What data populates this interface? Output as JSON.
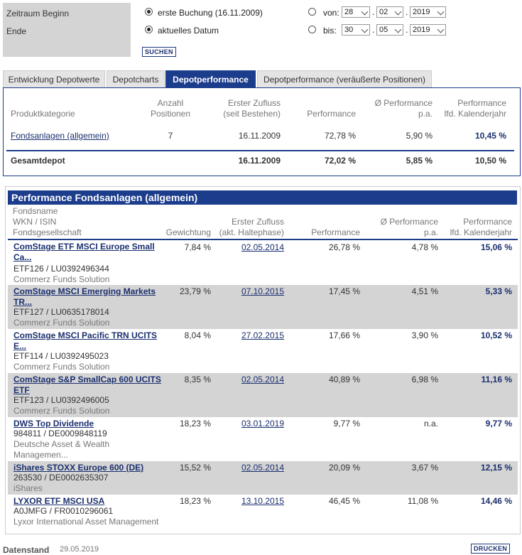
{
  "filter": {
    "zeitraum_label": "Zeitraum Beginn",
    "ende_label": "Ende",
    "option_first": "erste Buchung (16.11.2009)",
    "option_current": "aktuelles Datum",
    "von_label": "von:",
    "bis_label": "bis:",
    "von_day": "28",
    "von_month": "02",
    "von_year": "2019",
    "bis_day": "30",
    "bis_month": "05",
    "bis_year": "2019",
    "dot": ".",
    "search_button": "SUCHEN"
  },
  "tabs": [
    {
      "label": "Entwicklung Depotwerte"
    },
    {
      "label": "Depotcharts"
    },
    {
      "label": "Depotperformance"
    },
    {
      "label": "Depotperformance (veräußerte Positionen)"
    }
  ],
  "summary": {
    "headers": {
      "category": "Produktkategorie",
      "positions_1": "Anzahl",
      "positions_2": "Positionen",
      "first_1": "Erster Zufluss",
      "first_2": "(seit Bestehen)",
      "performance": "Performance",
      "pa_1": "Ø Performance",
      "pa_2": "p.a.",
      "year_1": "Performance",
      "year_2": "lfd. Kalenderjahr"
    },
    "row": {
      "category": "Fondsanlagen (allgemein)",
      "positions": "7",
      "first": "16.11.2009",
      "performance": "72,78 %",
      "pa": "5,90 %",
      "year": "10,45 %"
    },
    "total": {
      "label": "Gesamtdepot",
      "first": "16.11.2009",
      "performance": "72,02 %",
      "pa": "5,85 %",
      "year": "10,50 %"
    }
  },
  "funds": {
    "title": "Performance Fondsanlagen (allgemein)",
    "headers": {
      "name_1": "Fondsname",
      "name_2": "WKN / ISIN",
      "name_3": "Fondsgesellschaft",
      "weight": "Gewichtung",
      "first_1": "Erster Zufluss",
      "first_2": "(akt. Haltephase)",
      "performance": "Performance",
      "pa_1": "Ø Performance",
      "pa_2": "p.a.",
      "year_1": "Performance",
      "year_2": "lfd. Kalenderjahr"
    },
    "rows": [
      {
        "name_1": "ComStage ETF MSCI Europe Small",
        "name_2": "Ca...",
        "wkn": "ETF126 / LU0392496344",
        "gs": "Commerz Funds Solution",
        "weight": "7,84 %",
        "first": "02.05.2014",
        "performance": "26,78 %",
        "pa": "4,78 %",
        "year": "15,06 %"
      },
      {
        "name_1": "ComStage MSCI Emerging Markets",
        "name_2": "TR...",
        "wkn": "ETF127 / LU0635178014",
        "gs": "Commerz Funds Solution",
        "weight": "23,79 %",
        "first": "07.10.2015",
        "performance": "17,45 %",
        "pa": "4,51 %",
        "year": "5,33 %"
      },
      {
        "name_1": "ComStage MSCI Pacific TRN UCITS",
        "name_2": "E...",
        "wkn": "ETF114 / LU0392495023",
        "gs": "Commerz Funds Solution",
        "weight": "8,04 %",
        "first": "27.02.2015",
        "performance": "17,66 %",
        "pa": "3,90 %",
        "year": "10,52 %"
      },
      {
        "name_1": "ComStage S&P SmallCap 600 UCITS",
        "name_2": "ETF",
        "wkn": "ETF123 / LU0392496005",
        "gs": "Commerz Funds Solution",
        "weight": "8,35 %",
        "first": "02.05.2014",
        "performance": "40,89 %",
        "pa": "6,98 %",
        "year": "11,16 %"
      },
      {
        "name_1": "DWS Top Dividende",
        "name_2": "",
        "wkn": "984811 / DE0009848119",
        "gs": "Deutsche Asset & Wealth",
        "gs_2": "Managemen...",
        "weight": "18,23 %",
        "first": "03.01.2019",
        "performance": "9,77 %",
        "pa": "n.a.",
        "year": "9,77 %"
      },
      {
        "name_1": "iShares STOXX Europe 600 (DE)",
        "name_2": "",
        "wkn": "263530 / DE0002635307",
        "gs": "iShares",
        "weight": "15,52 %",
        "first": "02.05.2014",
        "performance": "20,09 %",
        "pa": "3,67 %",
        "year": "12,15 %"
      },
      {
        "name_1": "LYXOR ETF MSCI USA",
        "name_2": "",
        "wkn": "A0JMFG / FR0010296061",
        "gs": "Lyxor International Asset Management",
        "weight": "18,23 %",
        "first": "13.10.2015",
        "performance": "46,45 %",
        "pa": "11,08 %",
        "year": "14,46 %"
      }
    ]
  },
  "footer": {
    "label": "Datenstand",
    "date": "29.05.2019",
    "print_button": "DRUCKEN"
  }
}
